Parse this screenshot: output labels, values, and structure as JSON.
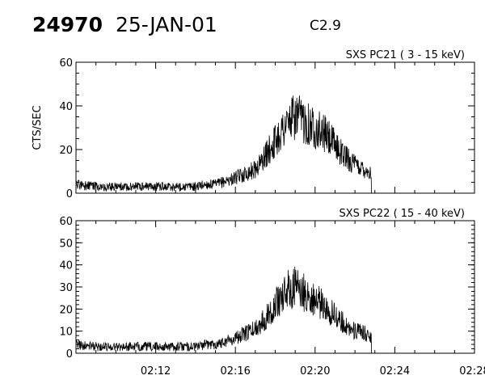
{
  "header": {
    "event_id": "24970",
    "date": "25-JAN-01",
    "flare_class": "C2.9"
  },
  "chart_data": [
    {
      "type": "line",
      "title": "SXS PC21  (  3 - 15 keV)",
      "ylabel": "CTS/SEC",
      "xlim": [
        "02:08",
        "02:28"
      ],
      "ylim": [
        0,
        60
      ],
      "y_ticks": [
        0,
        20,
        40,
        60
      ],
      "grid": false,
      "series": [
        {
          "x": [
            "02:08",
            "02:09",
            "02:10",
            "02:11",
            "02:12",
            "02:13",
            "02:14",
            "02:14:30",
            "02:15",
            "02:16",
            "02:17",
            "02:17:30",
            "02:18",
            "02:18:30",
            "02:19",
            "02:19:30",
            "02:20",
            "02:20:30",
            "02:21",
            "02:21:30",
            "02:22",
            "02:22:30",
            "02:22:50"
          ],
          "y": [
            4,
            3,
            3,
            3,
            3,
            3,
            3,
            4,
            4,
            7,
            11,
            17,
            24,
            31,
            35,
            33,
            30,
            27,
            22,
            17,
            13,
            11,
            9
          ]
        }
      ]
    },
    {
      "type": "line",
      "title": "SXS PC22  ( 15 - 40 keV)",
      "ylabel": "",
      "xlim": [
        "02:08",
        "02:28"
      ],
      "ylim": [
        0,
        60
      ],
      "y_ticks": [
        0,
        10,
        20,
        30,
        40,
        50,
        60
      ],
      "x_ticks": [
        "02:12",
        "02:16",
        "02:20",
        "02:24",
        "02:28"
      ],
      "grid": false,
      "series": [
        {
          "x": [
            "02:08",
            "02:09",
            "02:10",
            "02:11",
            "02:12",
            "02:13",
            "02:14",
            "02:14:30",
            "02:15",
            "02:16",
            "02:17",
            "02:17:30",
            "02:18",
            "02:18:30",
            "02:19",
            "02:19:30",
            "02:20",
            "02:20:30",
            "02:21",
            "02:21:30",
            "02:22",
            "02:22:30",
            "02:22:50"
          ],
          "y": [
            4,
            3,
            3,
            3,
            3,
            3,
            3,
            4,
            4,
            7,
            11,
            16,
            22,
            28,
            30,
            27,
            24,
            21,
            17,
            13,
            10,
            9,
            7
          ]
        }
      ]
    }
  ]
}
